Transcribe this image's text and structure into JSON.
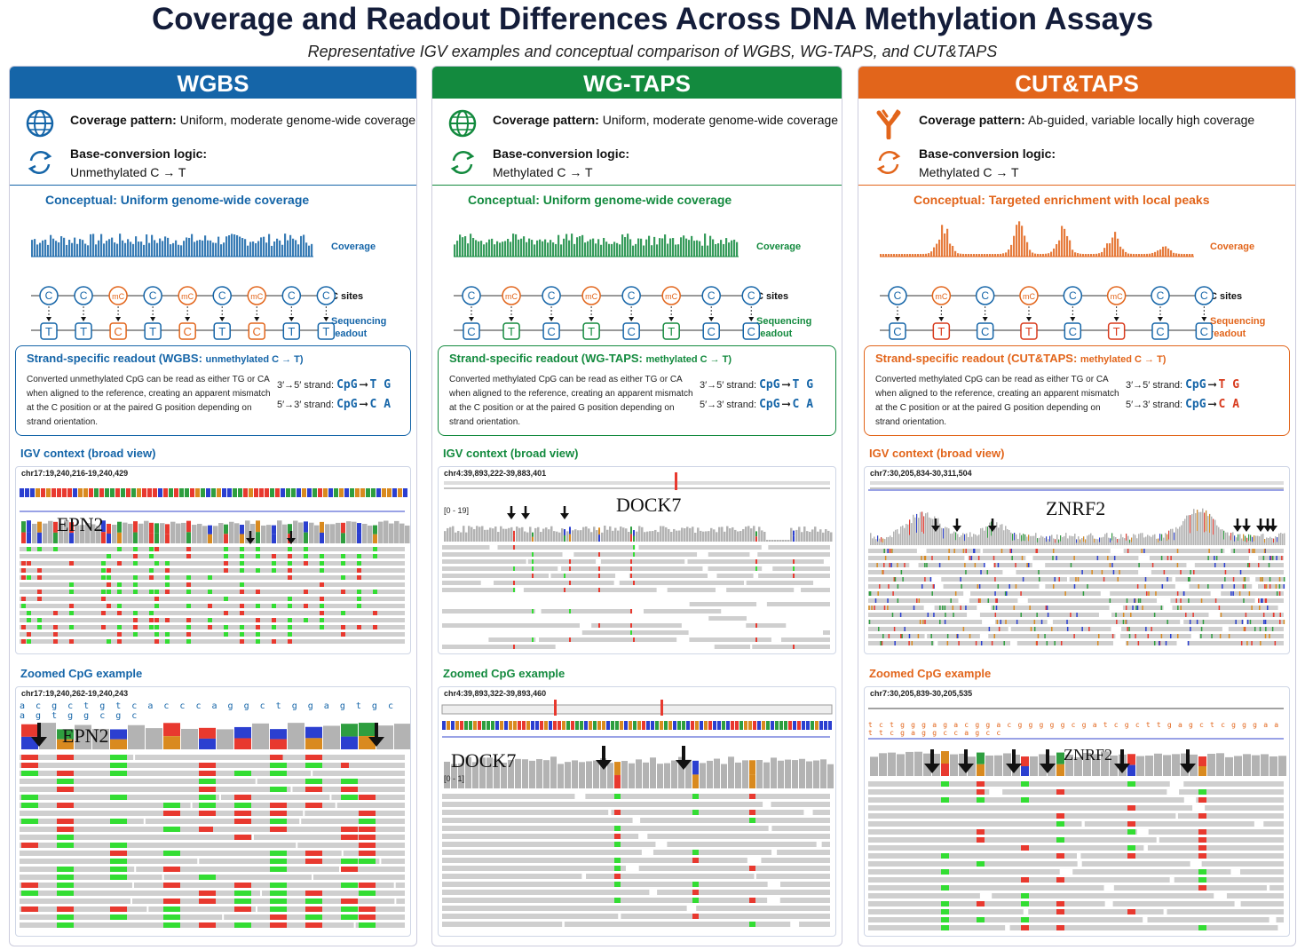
{
  "title": "Coverage and Readout Differences Across DNA Methylation Assays",
  "subtitle": "Representative IGV examples and conceptual comparison of WGBS, WG-TAPS, and CUT&TAPS",
  "labels": {
    "coverage": "Coverage",
    "c_sites": "C sites",
    "seq_readout_1": "Sequencing",
    "seq_readout_2": "readout",
    "coverage_pattern": "Coverage pattern:",
    "base_conversion": "Base-conversion logic:",
    "igv_context": "IGV context (broad view)",
    "zoomed": "Zoomed CpG example",
    "strand_top": "3′→5′ strand:",
    "strand_bottom": "5′→3′ strand:",
    "cpg": "CpG",
    "arrow": "⟶"
  },
  "panels": [
    {
      "name": "WGBS",
      "color": "#1565a8",
      "icon": "globe-icon",
      "coverage_text": "Uniform, moderate genome-wide coverage",
      "conversion_text": "Unmethylated C → T",
      "concept_title": "Conceptual: Uniform genome-wide coverage",
      "sites": [
        "C",
        "C",
        "mC",
        "C",
        "mC",
        "C",
        "mC",
        "C",
        "C"
      ],
      "readout": [
        "T",
        "T",
        "C",
        "T",
        "C",
        "T",
        "C",
        "T",
        "T"
      ],
      "strand_title": "Strand-specific readout (WGBS: ",
      "strand_title_small": "unmethylated C → T)",
      "strand_desc": "Converted unmethylated CpG can be read as either TG or CA when aligned to the reference, creating an apparent mismatch at the C position or at the paired G position depending on strand orientation.",
      "top_read": "T G",
      "bottom_read": "C A",
      "igv_locus": "chr17:19,240,216-19,240,429",
      "igv_gene": "EPN2",
      "zoom_locus": "chr17:19,240,262-19,240,243",
      "zoom_gene": "EPN2",
      "zoom_seq": "a c g c t g t c a c c c a g g c t g g a g t g c a g t g g c g c"
    },
    {
      "name": "WG-TAPS",
      "color": "#138a3e",
      "icon": "globe-icon",
      "coverage_text": "Uniform, moderate genome-wide coverage",
      "conversion_text": "Methylated C → T",
      "concept_title": "Conceptual: Uniform genome-wide coverage",
      "sites": [
        "C",
        "mC",
        "C",
        "mC",
        "C",
        "mC",
        "C",
        "C"
      ],
      "readout": [
        "C",
        "T",
        "C",
        "T",
        "C",
        "T",
        "C",
        "C"
      ],
      "strand_title": "Strand-specific readout (WG-TAPS: ",
      "strand_title_small": "methylated C → T)",
      "strand_desc": "Converted methylated CpG can be read as either TG or CA when aligned to the reference, creating an apparent mismatch at the C position or at the paired G position depending on strand orientation.",
      "top_read": "T G",
      "bottom_read": "C A",
      "igv_locus": "chr4:39,893,222-39,883,401",
      "igv_gene": "DOCK7",
      "igv_scale": "[0 - 19]",
      "zoom_locus": "chr4:39,893,322-39,893,460",
      "zoom_gene": "DOCK7",
      "zoom_scale": "[0 - 1]"
    },
    {
      "name": "CUT&TAPS",
      "color": "#e2651b",
      "icon": "antibody-icon",
      "coverage_text": "Ab-guided, variable locally high coverage",
      "conversion_text": "Methylated C → T",
      "concept_title": "Conceptual: Targeted enrichment with local peaks",
      "sites": [
        "C",
        "mC",
        "C",
        "mC",
        "C",
        "mC",
        "C",
        "C"
      ],
      "readout": [
        "C",
        "T",
        "C",
        "T",
        "C",
        "T",
        "C",
        "C"
      ],
      "strand_title": "Strand-specific readout (CUT&TAPS: ",
      "strand_title_small": "methylated C → T)",
      "strand_desc": "Converted methylated CpG can be read as either TG or CA when aligned to the reference, creating an apparent mismatch at the C position or at the paired G position depending on strand orientation.",
      "top_read": "T G",
      "bottom_read": "C A",
      "igv_locus": "chr7:30,205,834-30,311,504",
      "igv_gene": "ZNRF2",
      "zoom_locus": "chr7:30,205,839-30,205,535",
      "zoom_gene": "ZNRF2",
      "zoom_seq": "t c t g g g a g a c g g a c g g g g g c g a t c g c t t g a g c t c g g g a a t t c g a g g c c a g c c"
    }
  ]
}
